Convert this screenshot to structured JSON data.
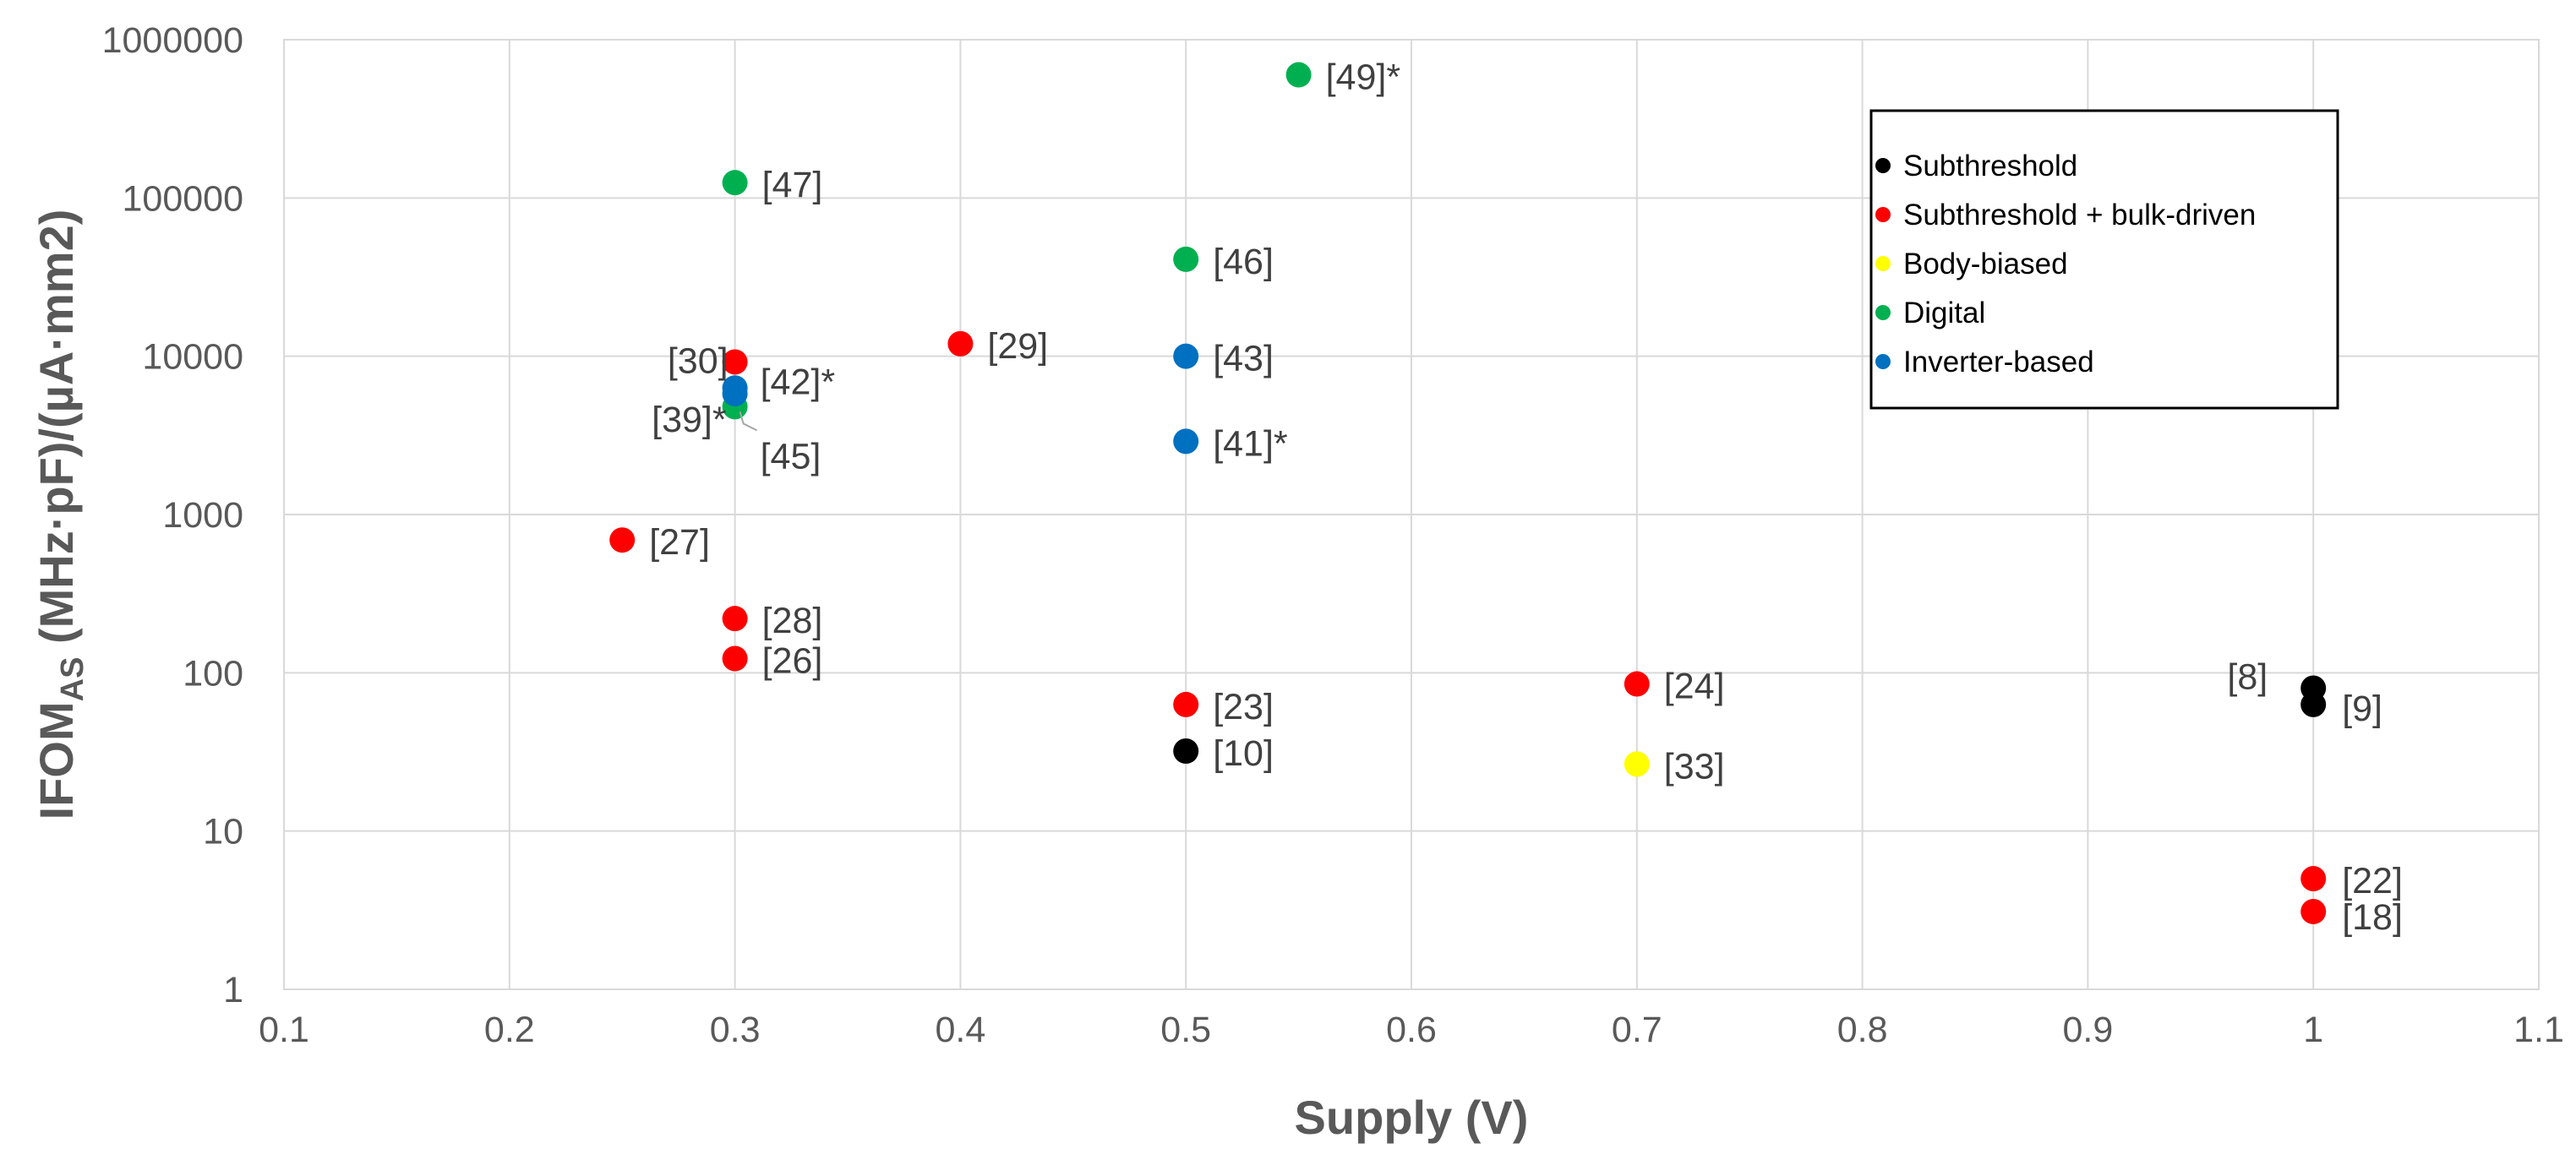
{
  "chart_data": {
    "type": "scatter",
    "title": "",
    "xlabel": "Supply (V)",
    "ylabel": "IFOM",
    "ylabel_subscript": "AS",
    "ylabel_units": " (MHz·pF)/(µA·mm2)",
    "xlim": [
      0.1,
      1.1
    ],
    "ylim": [
      1,
      1000000
    ],
    "yscale": "log",
    "grid": true,
    "legend_position": "top-right",
    "x_ticks": [
      "0.1",
      "0.2",
      "0.3",
      "0.4",
      "0.5",
      "0.6",
      "0.7",
      "0.8",
      "0.9",
      "1",
      "1.1"
    ],
    "y_ticks": [
      "1",
      "10",
      "100",
      "1000",
      "10000",
      "100000",
      "1000000"
    ],
    "series": [
      {
        "name": "Subthreshold",
        "color": "#000000",
        "points": [
          {
            "x": 0.5,
            "y": 32,
            "label": "[10]"
          },
          {
            "x": 1.0,
            "y": 80,
            "label": "[8]"
          },
          {
            "x": 1.0,
            "y": 63,
            "label": "[9]"
          }
        ]
      },
      {
        "name": "Subthreshold + bulk-driven",
        "color": "#ff0000",
        "points": [
          {
            "x": 0.25,
            "y": 690,
            "label": "[27]"
          },
          {
            "x": 0.3,
            "y": 9200,
            "label": "[30]"
          },
          {
            "x": 0.3,
            "y": 220,
            "label": "[28]"
          },
          {
            "x": 0.3,
            "y": 123,
            "label": "[26]"
          },
          {
            "x": 0.4,
            "y": 12000,
            "label": "[29]"
          },
          {
            "x": 0.5,
            "y": 63,
            "label": "[23]"
          },
          {
            "x": 0.7,
            "y": 85,
            "label": "[24]"
          },
          {
            "x": 1.0,
            "y": 5,
            "label": "[22]"
          },
          {
            "x": 1.0,
            "y": 3.1,
            "label": "[18]"
          }
        ]
      },
      {
        "name": "Body-biased",
        "color": "#ffff00",
        "points": [
          {
            "x": 0.7,
            "y": 26.5,
            "label": "[33]"
          }
        ]
      },
      {
        "name": "Digital",
        "color": "#00b050",
        "points": [
          {
            "x": 0.3,
            "y": 125000,
            "label": "[47]"
          },
          {
            "x": 0.3,
            "y": 4800,
            "label": "[45]"
          },
          {
            "x": 0.5,
            "y": 41000,
            "label": "[46]"
          },
          {
            "x": 0.55,
            "y": 600000,
            "label": "[49]*"
          }
        ]
      },
      {
        "name": "Inverter-based",
        "color": "#0070c0",
        "points": [
          {
            "x": 0.3,
            "y": 6300,
            "label": "[42]*"
          },
          {
            "x": 0.3,
            "y": 5800,
            "label": "[39]*"
          },
          {
            "x": 0.5,
            "y": 10000,
            "label": "[43]"
          },
          {
            "x": 0.5,
            "y": 2900,
            "label": "[41]*"
          }
        ]
      }
    ]
  }
}
